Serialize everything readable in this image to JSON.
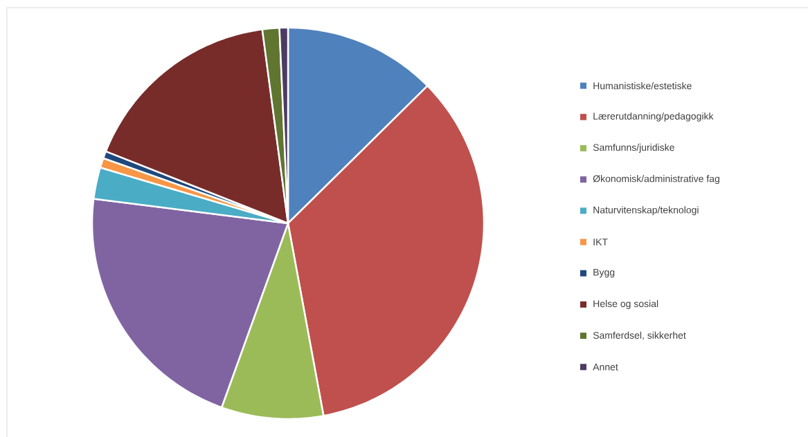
{
  "chart_data": {
    "type": "pie",
    "categories": [
      "Humanistiske/estetiske",
      "Lærerutdanning/pedagogikk",
      "Samfunns/juridiske",
      "Økonomisk/administrative fag",
      "Naturvitenskap/teknologi",
      "IKT",
      "Bygg",
      "Helse og sosial",
      "Samferdsel, sikkerhet",
      "Annet"
    ],
    "values": [
      12.6,
      34.5,
      8.4,
      21.5,
      2.6,
      0.8,
      0.6,
      16.9,
      1.4,
      0.7
    ],
    "colors": [
      "#4f81bd",
      "#c0504d",
      "#9bbb59",
      "#8064a2",
      "#4bacc6",
      "#f79646",
      "#1f497d",
      "#772c2a",
      "#5f7530",
      "#4d3b62"
    ],
    "legend": "right"
  }
}
